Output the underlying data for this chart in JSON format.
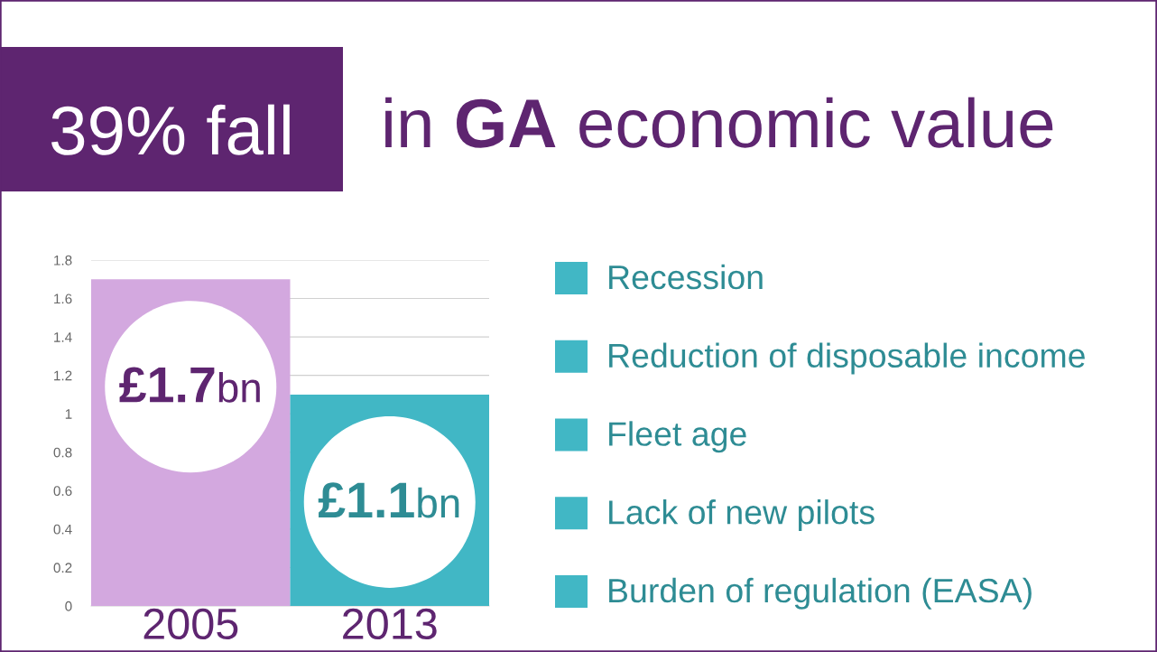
{
  "chart_data": {
    "type": "bar",
    "title": "39% fall in GA economic value",
    "categories": [
      "2005",
      "2013"
    ],
    "values": [
      1.7,
      1.1
    ],
    "colors": [
      "#d3a8df",
      "#41b7c5"
    ],
    "value_labels": [
      "£1.7bn",
      "£1.1bn"
    ],
    "ylim": [
      0,
      1.8
    ],
    "yticks": [
      0,
      0.2,
      0.4,
      0.6,
      0.8,
      1,
      1.2,
      1.4,
      1.6,
      1.8
    ],
    "grid": "y",
    "annotations": [
      "Recession",
      "Reduction of disposable income",
      "Fleet age",
      "Lack of new pilots",
      "Burden of regulation (EASA)"
    ]
  }
}
